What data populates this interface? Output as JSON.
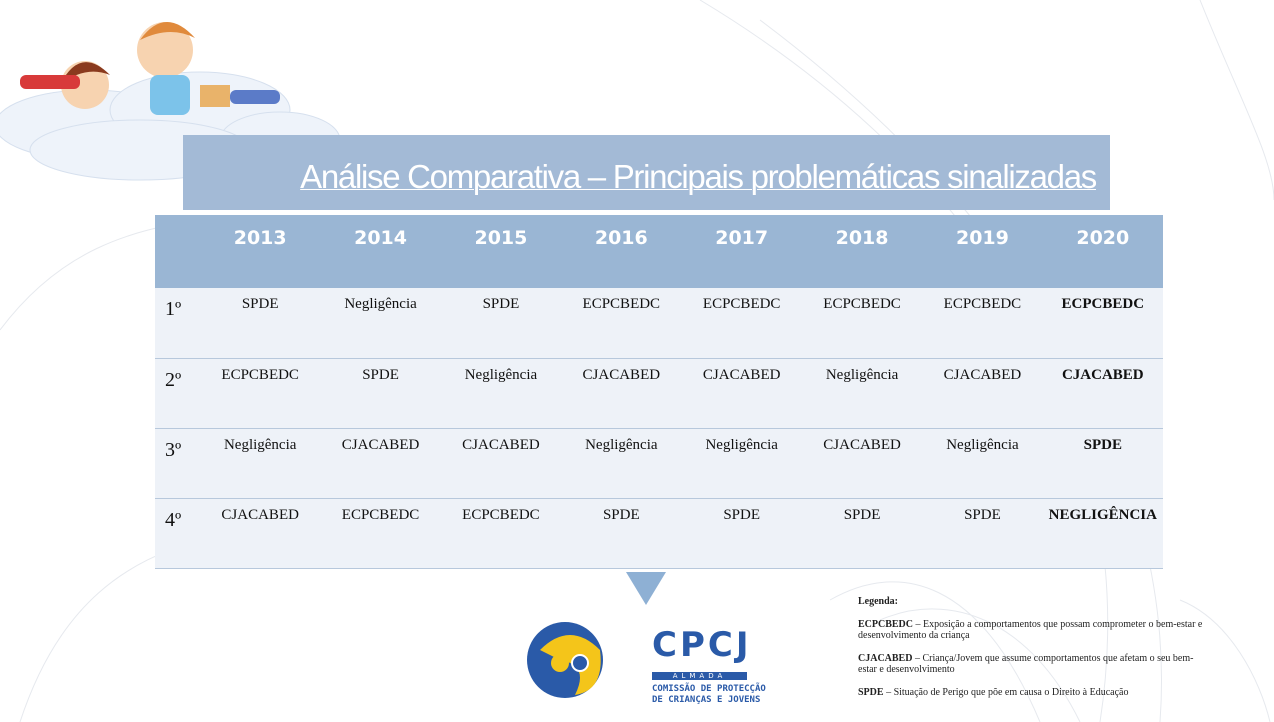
{
  "title": "Análise Comparativa – Principais problemáticas sinalizadas",
  "table": {
    "header": [
      "2013",
      "2014",
      "2015",
      "2016",
      "2017",
      "2018",
      "2019",
      "2020"
    ],
    "rows": [
      {
        "rank": "1º",
        "cells": [
          "SPDE",
          "Negligência",
          "SPDE",
          "ECPCBEDC",
          "ECPCBEDC",
          "ECPCBEDC",
          "ECPCBEDC",
          "ECPCBEDC"
        ]
      },
      {
        "rank": "2º",
        "cells": [
          "ECPCBEDC",
          "SPDE",
          "Negligência",
          "CJACABED",
          "CJACABED",
          "Negligência",
          "CJACABED",
          "CJACABED"
        ]
      },
      {
        "rank": "3º",
        "cells": [
          "Negligência",
          "CJACABED",
          "CJACABED",
          "Negligência",
          "Negligência",
          "CJACABED",
          "Negligência",
          "SPDE"
        ]
      },
      {
        "rank": "4º",
        "cells": [
          "CJACABED",
          "ECPCBEDC",
          "ECPCBEDC",
          "SPDE",
          "SPDE",
          "SPDE",
          "SPDE",
          "NEGLIGÊNCIA"
        ]
      }
    ]
  },
  "legend": {
    "title": "Legenda:",
    "items": [
      {
        "term": "ECPCBEDC",
        "description": "– Exposição a comportamentos que possam comprometer o bem-estar e desenvolvimento da criança"
      },
      {
        "term": "CJACABED",
        "description": "– Criança/Jovem que assume comportamentos que afetam o seu bem-estar e desenvolvimento"
      },
      {
        "term": "SPDE",
        "description": "– Situação de Perigo que põe em causa o Direito à Educação"
      }
    ]
  },
  "logo": {
    "name": "CPCJ",
    "place": "ALMADA",
    "line1": "COMISSÃO DE PROTECÇÃO",
    "line2": "DE CRIANÇAS E JOVENS"
  }
}
